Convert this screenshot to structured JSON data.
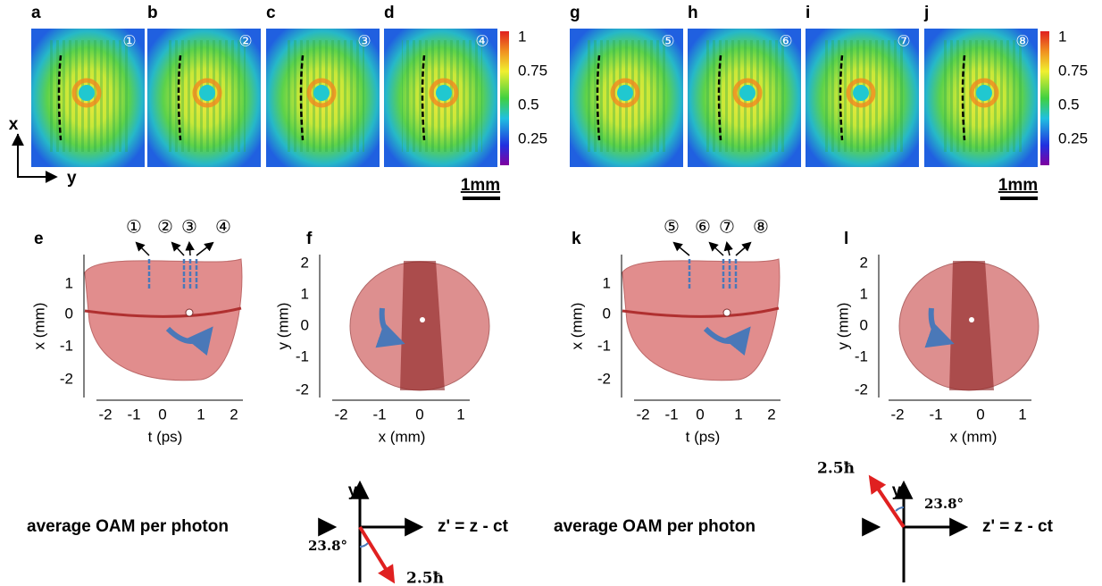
{
  "top_left": {
    "panels": [
      {
        "label": "a",
        "marker": "①"
      },
      {
        "label": "b",
        "marker": "②"
      },
      {
        "label": "c",
        "marker": "③"
      },
      {
        "label": "d",
        "marker": "④"
      }
    ],
    "colorbar": [
      "1",
      "0.75",
      "0.5",
      "0.25"
    ],
    "scale_bar": "1mm"
  },
  "top_right": {
    "panels": [
      {
        "label": "g",
        "marker": "⑤"
      },
      {
        "label": "h",
        "marker": "⑥"
      },
      {
        "label": "i",
        "marker": "⑦"
      },
      {
        "label": "j",
        "marker": "⑧"
      }
    ],
    "colorbar": [
      "1",
      "0.75",
      "0.5",
      "0.25"
    ],
    "scale_bar": "1mm"
  },
  "axes_key": {
    "x": "x",
    "y": "y"
  },
  "plots": [
    {
      "label": "e",
      "markers": [
        "①",
        "②",
        "③",
        "④"
      ],
      "yticks": [
        "1",
        "0",
        "-1",
        "-2"
      ],
      "xticks": [
        "-2",
        "-1",
        "0",
        "1",
        "2"
      ],
      "xlabel": "t (ps)",
      "ylabel": "x (mm)"
    },
    {
      "label": "f",
      "yticks": [
        "2",
        "1",
        "0",
        "-1",
        "-2"
      ],
      "xticks": [
        "-2",
        "-1",
        "0",
        "1"
      ],
      "xlabel": "x (mm)",
      "ylabel": "y (mm)"
    },
    {
      "label": "k",
      "markers": [
        "⑤",
        "⑥",
        "⑦",
        "⑧"
      ],
      "yticks": [
        "1",
        "0",
        "-1",
        "-2"
      ],
      "xticks": [
        "-2",
        "-1",
        "0",
        "1",
        "2"
      ],
      "xlabel": "t (ps)",
      "ylabel": "x (mm)"
    },
    {
      "label": "l",
      "yticks": [
        "2",
        "1",
        "0",
        "-1",
        "-2"
      ],
      "xticks": [
        "-2",
        "-1",
        "0",
        "1"
      ],
      "xlabel": "x (mm)",
      "ylabel": "y (mm)"
    }
  ],
  "oam": [
    {
      "text": "average OAM per photon",
      "y_axis": "y",
      "z_axis": "z' = z - ct",
      "angle": "23.8°",
      "value": "2.5ħ"
    },
    {
      "text": "average OAM per photon",
      "y_axis": "y",
      "z_axis": "z' = z - ct",
      "angle": "23.8°",
      "value": "2.5ħ"
    }
  ]
}
